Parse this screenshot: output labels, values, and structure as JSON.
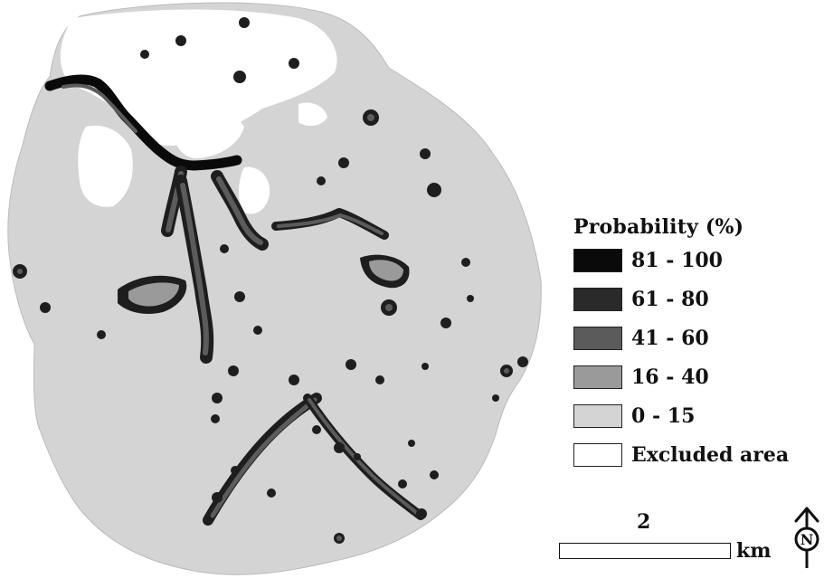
{
  "legend": {
    "title": "Probability (%)",
    "classes": [
      {
        "label": "81 - 100",
        "color": "#0a0a0a"
      },
      {
        "label": "61 - 80",
        "color": "#2a2a2a"
      },
      {
        "label": "41 - 60",
        "color": "#5b5b5b"
      },
      {
        "label": "16 - 40",
        "color": "#9a9a9a"
      },
      {
        "label": "0 - 15",
        "color": "#d4d4d4"
      },
      {
        "label": "Excluded area",
        "color": "#ffffff"
      }
    ]
  },
  "scale_bar": {
    "distance": "2",
    "unit": "km"
  },
  "north_arrow": {
    "letter": "N",
    "icon": "north-arrow-icon"
  },
  "colors": {
    "background": "#d4d4d4",
    "excluded": "#ffffff",
    "outline": "#1a1a1a"
  }
}
